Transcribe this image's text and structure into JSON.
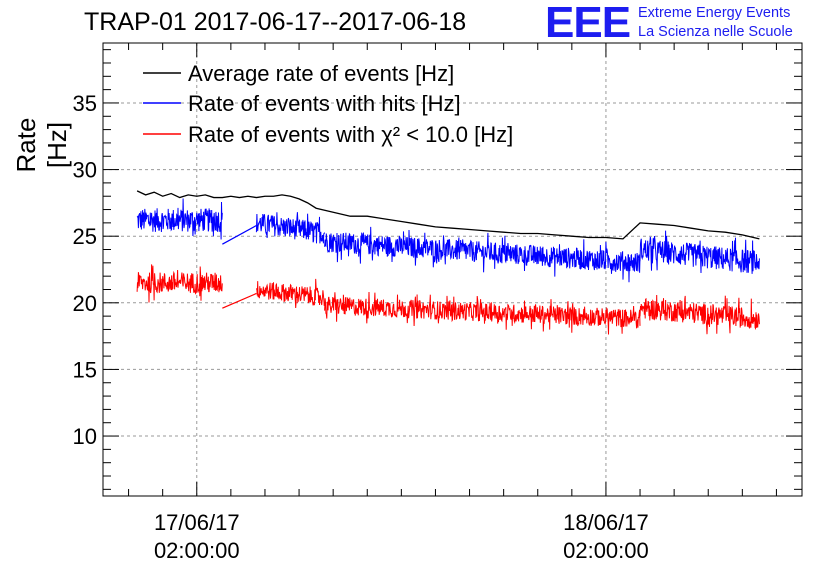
{
  "header": {
    "title": "TRAP-01 2017-06-17--2017-06-18"
  },
  "logo": {
    "mark": "EEE",
    "line1": "Extreme Energy Events",
    "line2": "La Scienza nelle Scuole",
    "color": "#1d1df0"
  },
  "chart_data": {
    "type": "line",
    "title": "TRAP-01 2017-06-17--2017-06-18",
    "xlabel": "",
    "ylabel": "Rate [Hz]",
    "ylim": [
      5.5,
      39.5
    ],
    "yticks": [
      10,
      15,
      20,
      25,
      30,
      35
    ],
    "x_unit": "hours since 17/06/17 00:00:00",
    "xlim": [
      -3.5,
      37.5
    ],
    "xticks": [
      {
        "x": 2,
        "date": "17/06/17",
        "time": "02:00:00"
      },
      {
        "x": 26,
        "date": "18/06/17",
        "time": "02:00:00"
      }
    ],
    "grid": true,
    "legend_position": "top-left",
    "series": [
      {
        "name": "Average rate of events [Hz]",
        "color": "#000000",
        "x": [
          -1.5,
          -1.0,
          -0.5,
          0.0,
          0.5,
          1.0,
          1.5,
          2.0,
          2.5,
          3.0,
          3.5,
          4.0,
          4.5,
          5.0,
          5.5,
          6.0,
          6.5,
          7.0,
          7.5,
          8.0,
          8.5,
          9.0,
          10,
          11,
          12,
          13,
          14,
          15,
          16,
          17,
          18,
          19,
          20,
          21,
          22,
          23,
          24,
          25,
          26,
          27,
          28,
          29,
          30,
          31,
          32,
          33,
          34,
          35
        ],
        "y": [
          28.4,
          28.1,
          28.3,
          28.0,
          28.2,
          27.9,
          28.1,
          28.0,
          28.1,
          27.9,
          27.9,
          28.0,
          27.9,
          28.0,
          27.9,
          28.0,
          28.0,
          28.1,
          28.0,
          27.8,
          27.5,
          27.1,
          26.8,
          26.5,
          26.5,
          26.3,
          26.1,
          25.9,
          25.7,
          25.6,
          25.5,
          25.4,
          25.3,
          25.2,
          25.2,
          25.1,
          25.0,
          24.9,
          24.9,
          24.8,
          26.0,
          25.9,
          25.8,
          25.6,
          25.4,
          25.3,
          25.1,
          24.8
        ]
      },
      {
        "name": "Rate of events with hits [Hz]",
        "color": "#0000ff",
        "segments": [
          {
            "x0": -1.5,
            "x1": 3.5,
            "mean": 26.2,
            "noise": 0.9
          },
          {
            "x0": 5.5,
            "x1": 9.5,
            "mean": 26.0,
            "noise": 0.8,
            "trend_end": 25.2
          },
          {
            "x0": 9.5,
            "x1": 28.0,
            "mean": 24.6,
            "noise": 0.8,
            "trend_end": 23.0
          },
          {
            "x0": 28.0,
            "x1": 35.0,
            "mean": 24.0,
            "noise": 0.9,
            "trend_end": 23.0
          }
        ],
        "gap_line": {
          "x": [
            3.5,
            5.5
          ],
          "y": [
            24.4,
            25.8
          ]
        }
      },
      {
        "name": "Rate of events with χ² < 10.0 [Hz]",
        "color": "#ff0000",
        "segments": [
          {
            "x0": -1.5,
            "x1": 3.5,
            "mean": 21.5,
            "noise": 0.8
          },
          {
            "x0": 5.5,
            "x1": 9.5,
            "mean": 21.0,
            "noise": 0.7,
            "trend_end": 20.4
          },
          {
            "x0": 9.5,
            "x1": 28.0,
            "mean": 19.8,
            "noise": 0.7,
            "trend_end": 18.8
          },
          {
            "x0": 28.0,
            "x1": 35.0,
            "mean": 19.6,
            "noise": 0.8,
            "trend_end": 18.8
          }
        ],
        "gap_line": {
          "x": [
            3.5,
            5.5
          ],
          "y": [
            19.6,
            20.7
          ]
        }
      }
    ]
  }
}
